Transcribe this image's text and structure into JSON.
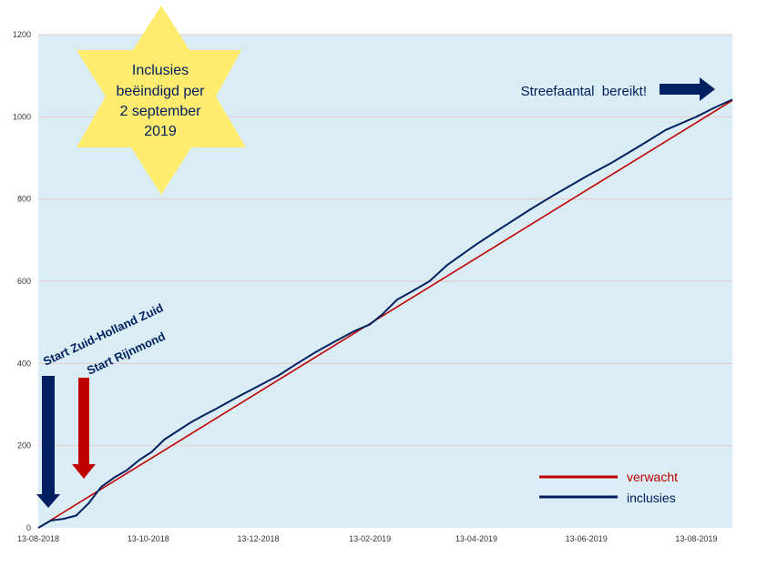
{
  "chart_data": {
    "type": "line",
    "title": "",
    "xlabel": "",
    "ylabel": "",
    "x_ticks": [
      "13-08-2018",
      "13-10-2018",
      "13-12-2018",
      "13-02-2019",
      "13-04-2019",
      "13-06-2019",
      "13-08-2019"
    ],
    "x_range": [
      "2018-08-13",
      "2019-09-02"
    ],
    "ylim": [
      0,
      1200
    ],
    "y_ticks": [
      0,
      200,
      400,
      600,
      800,
      1000,
      1200
    ],
    "grid": "horizontal",
    "legend_position": "bottom-right",
    "series": [
      {
        "name": "verwacht",
        "color": "#c00000",
        "points": [
          [
            "2018-08-13",
            0
          ],
          [
            "2019-09-02",
            1040
          ]
        ]
      },
      {
        "name": "inclusies",
        "color": "#002060",
        "points": [
          [
            "2018-08-13",
            0
          ],
          [
            "2018-08-20",
            18
          ],
          [
            "2018-08-27",
            22
          ],
          [
            "2018-09-03",
            30
          ],
          [
            "2018-09-10",
            60
          ],
          [
            "2018-09-17",
            100
          ],
          [
            "2018-09-24",
            122
          ],
          [
            "2018-10-01",
            140
          ],
          [
            "2018-10-08",
            165
          ],
          [
            "2018-10-15",
            185
          ],
          [
            "2018-10-22",
            215
          ],
          [
            "2018-10-29",
            235
          ],
          [
            "2018-11-05",
            255
          ],
          [
            "2018-11-12",
            272
          ],
          [
            "2018-11-19",
            288
          ],
          [
            "2018-11-26",
            305
          ],
          [
            "2018-12-03",
            322
          ],
          [
            "2018-12-13",
            345
          ],
          [
            "2018-12-24",
            370
          ],
          [
            "2019-01-03",
            398
          ],
          [
            "2019-01-14",
            428
          ],
          [
            "2019-01-24",
            452
          ],
          [
            "2019-02-04",
            478
          ],
          [
            "2019-02-13",
            495
          ],
          [
            "2019-02-20",
            520
          ],
          [
            "2019-02-28",
            555
          ],
          [
            "2019-03-07",
            572
          ],
          [
            "2019-03-18",
            600
          ],
          [
            "2019-03-28",
            640
          ],
          [
            "2019-04-13",
            690
          ],
          [
            "2019-04-27",
            730
          ],
          [
            "2019-05-13",
            775
          ],
          [
            "2019-05-27",
            812
          ],
          [
            "2019-06-13",
            855
          ],
          [
            "2019-06-27",
            888
          ],
          [
            "2019-07-13",
            930
          ],
          [
            "2019-07-27",
            968
          ],
          [
            "2019-08-13",
            1000
          ],
          [
            "2019-08-23",
            1022
          ],
          [
            "2019-09-02",
            1042
          ]
        ]
      }
    ]
  },
  "annotations": {
    "star_lines": [
      "Inclusies",
      "beëindigd per",
      "2 september",
      "2019"
    ],
    "star_color": "#ffec6e",
    "goal_text": "Streefaantal  bereikt!",
    "start_zhz": "Start Zuid-Holland Zuid",
    "start_rijnmond": "Start Rijnmond",
    "navy": "#002060",
    "red": "#c00000"
  },
  "colors": {
    "plot_background": "#daedf4",
    "gridline": "#e7c8cb"
  }
}
